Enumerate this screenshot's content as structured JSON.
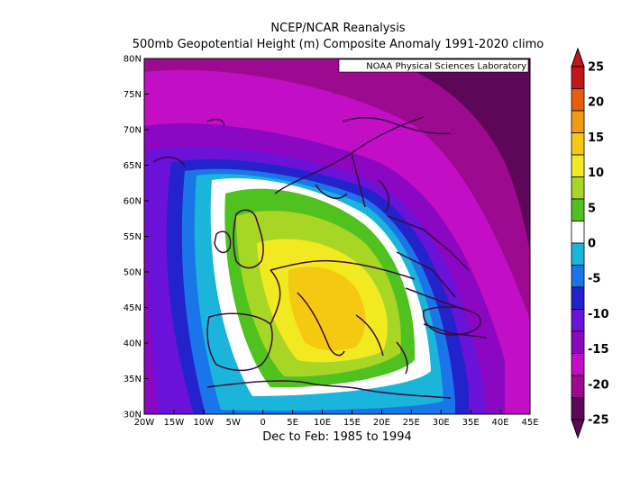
{
  "title": "NCEP/NCAR Reanalysis",
  "subtitle": "500mb Geopotential Height (m) Composite Anomaly 1991-2020 climo",
  "period_label": "Dec to Feb: 1985 to 1994",
  "credit": "NOAA Physical Sciences Laboratory",
  "map": {
    "lon_range": [
      -20,
      45
    ],
    "lat_range": [
      30,
      80
    ],
    "lon_ticks": [
      "20W",
      "15W",
      "10W",
      "5W",
      "0",
      "5E",
      "10E",
      "15E",
      "20E",
      "25E",
      "30E",
      "35E",
      "40E",
      "45E"
    ],
    "lat_ticks": [
      "30N",
      "35N",
      "40N",
      "45N",
      "50N",
      "55N",
      "60N",
      "65N",
      "70N",
      "75N",
      "80N"
    ],
    "anomaly_center_lon": 10,
    "anomaly_center_lat": 48,
    "anomaly_max_m": 10,
    "anomaly_min_m": -25,
    "coastline_color": "#3b0a3e"
  },
  "colorbar": {
    "levels": [
      "25",
      "20",
      "15",
      "10",
      "5",
      "0",
      "-5",
      "-10",
      "-15",
      "-20",
      "-25"
    ],
    "colors": [
      "#c0161c",
      "#e85d0c",
      "#f29a10",
      "#f5c912",
      "#f2ea20",
      "#a8d624",
      "#4fc21f",
      "#ffffff",
      "#1bb5dc",
      "#1a76e8",
      "#2323cc",
      "#6a12d8",
      "#8c07c2",
      "#c20fc6",
      "#9b0a8f",
      "#5c0758"
    ]
  }
}
